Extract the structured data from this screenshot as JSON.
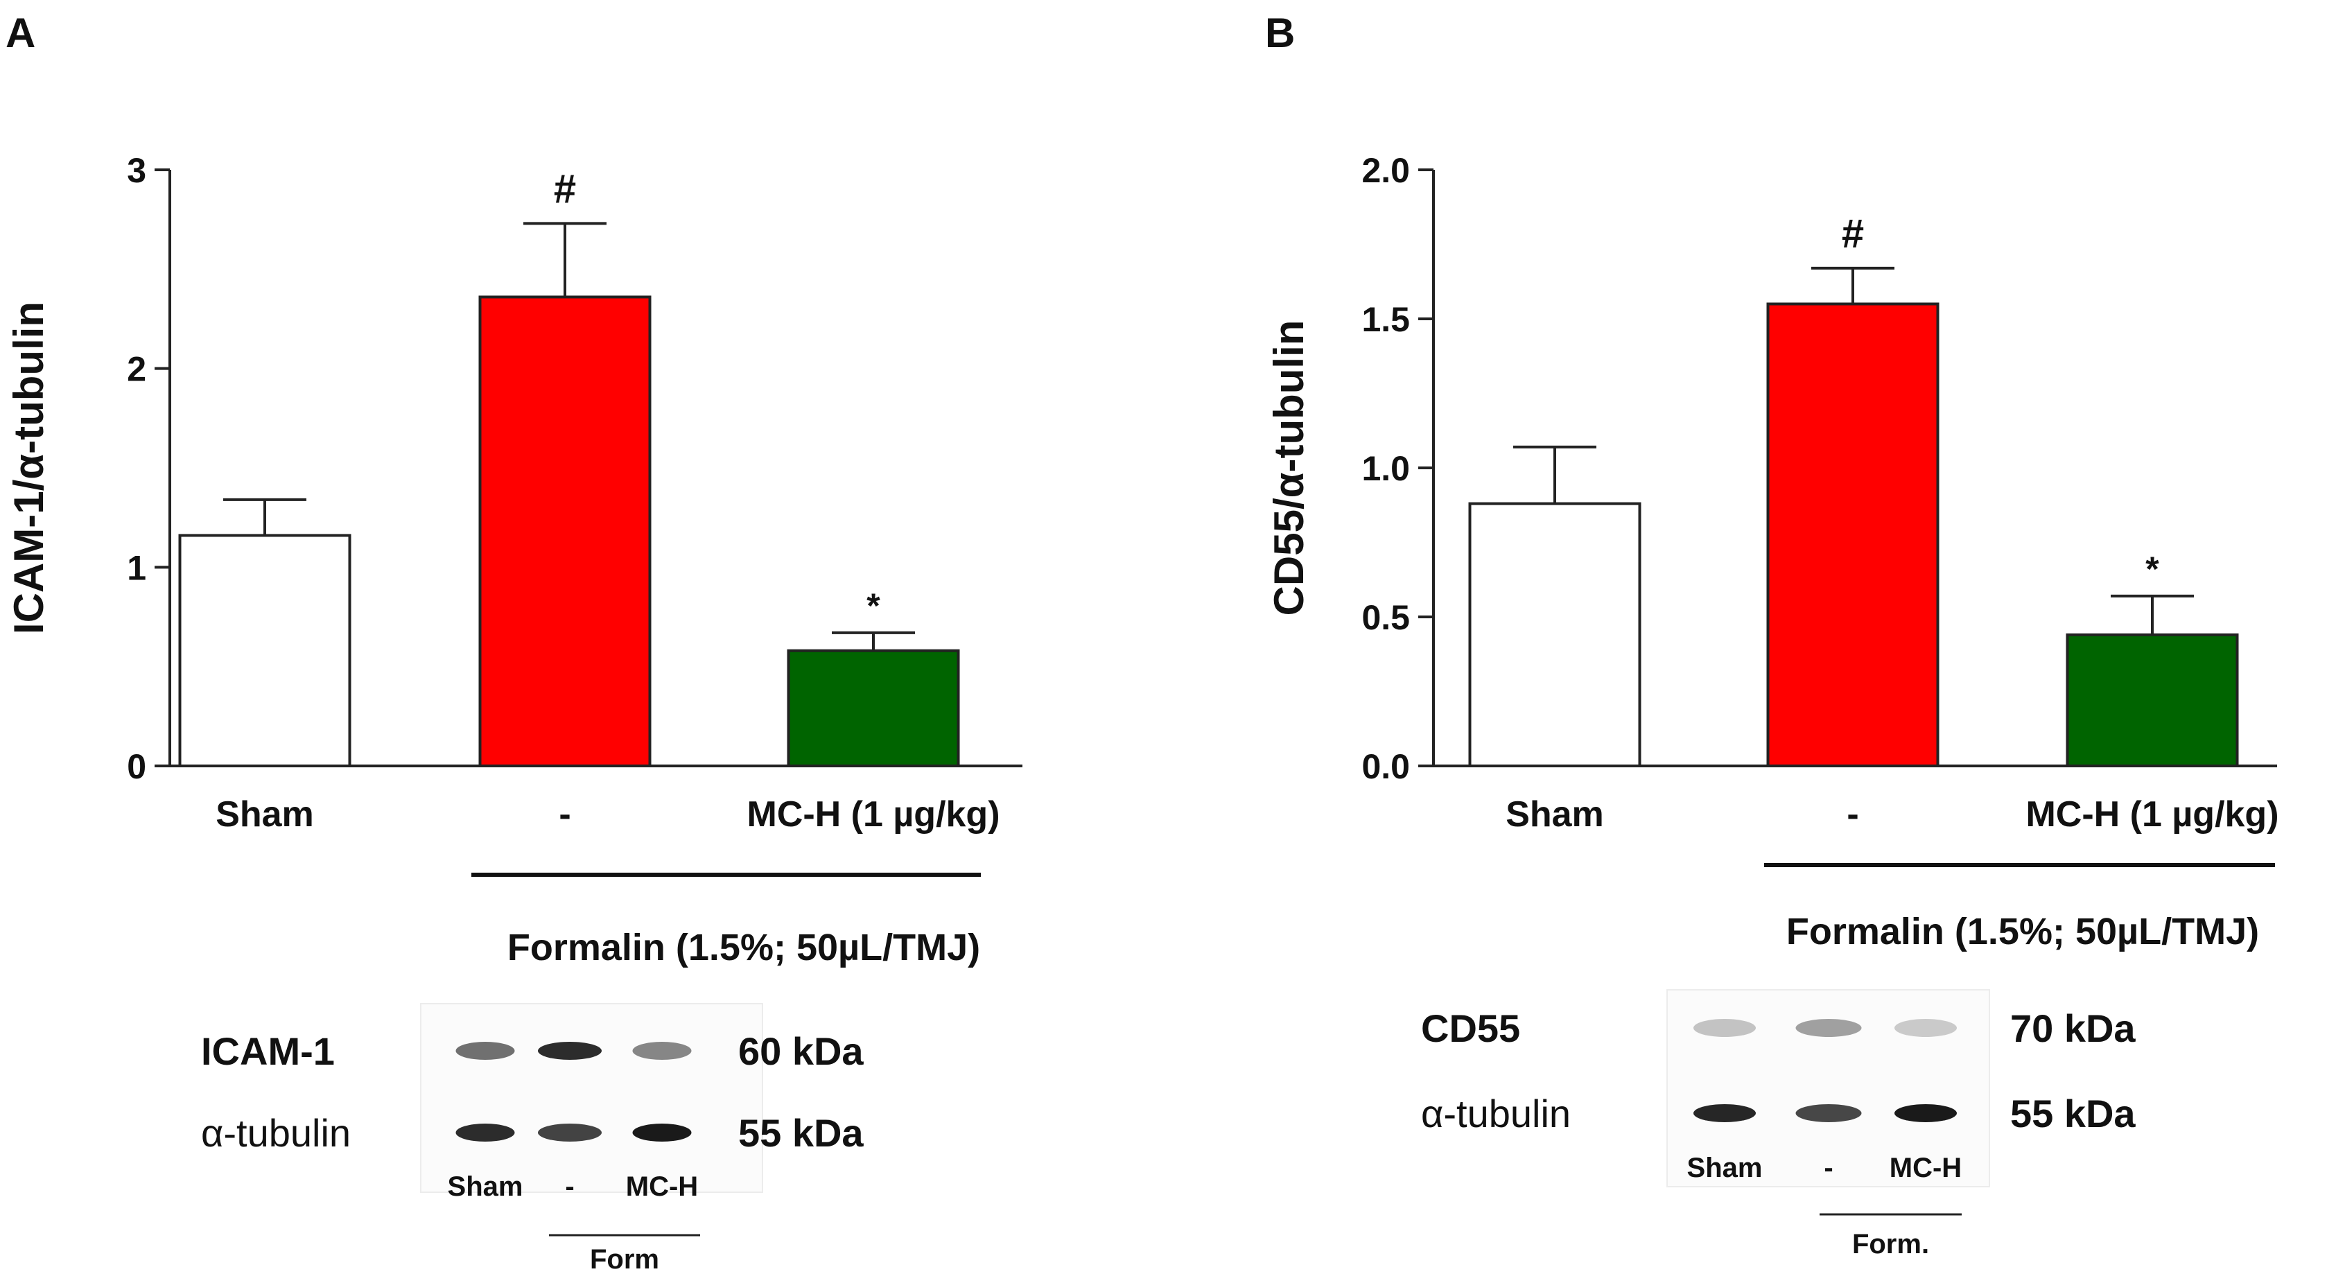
{
  "panels": [
    {
      "letter": "A",
      "chart_data": {
        "type": "bar",
        "categories": [
          "Sham",
          "-",
          "MC-H (1 µg/kg)"
        ],
        "values": [
          1.16,
          2.36,
          0.58
        ],
        "errors": [
          0.18,
          0.37,
          0.09
        ],
        "significance": [
          "",
          "#",
          "*"
        ],
        "bar_colors": [
          "#ffffff",
          "#ff0000",
          "#006400"
        ],
        "ylabel": "ICAM-1/α-tubulin",
        "ylim": [
          0,
          3
        ],
        "yticks": [
          0,
          1,
          2,
          3
        ],
        "ytick_labels": [
          "0",
          "1",
          "2",
          "3"
        ],
        "bracket_label": "Formalin (1.5%; 50µL/TMJ)"
      },
      "blot": {
        "rows": [
          {
            "label": "ICAM-1",
            "kda": "60 kDa",
            "intensity": [
              0.62,
              0.92,
              0.52
            ]
          },
          {
            "label": "α-tubulin",
            "kda": "55 kDa",
            "intensity": [
              0.92,
              0.82,
              1.0
            ]
          }
        ],
        "lanes": [
          "Sham",
          "-",
          "MC-H"
        ],
        "group_label": "Form"
      }
    },
    {
      "letter": "B",
      "chart_data": {
        "type": "bar",
        "categories": [
          "Sham",
          "-",
          "MC-H (1 µg/kg)"
        ],
        "values": [
          0.88,
          1.55,
          0.44
        ],
        "errors": [
          0.19,
          0.12,
          0.13
        ],
        "significance": [
          "",
          "#",
          "*"
        ],
        "bar_colors": [
          "#ffffff",
          "#ff0000",
          "#006400"
        ],
        "ylabel": "CD55/α-tubulin",
        "ylim": [
          0,
          2
        ],
        "yticks": [
          0,
          0.5,
          1,
          1.5,
          2
        ],
        "ytick_labels": [
          "0.0",
          "0.5",
          "1.0",
          "1.5",
          "2.0"
        ],
        "bracket_label": "Formalin (1.5%; 50µL/TMJ)"
      },
      "blot": {
        "rows": [
          {
            "label": "CD55",
            "kda": "70 kDa",
            "intensity": [
              0.25,
              0.4,
              0.22
            ]
          },
          {
            "label": "α-tubulin",
            "kda": "55 kDa",
            "intensity": [
              0.95,
              0.8,
              1.0
            ]
          }
        ],
        "lanes": [
          "Sham",
          "-",
          "MC-H"
        ],
        "group_label": "Form."
      }
    }
  ]
}
